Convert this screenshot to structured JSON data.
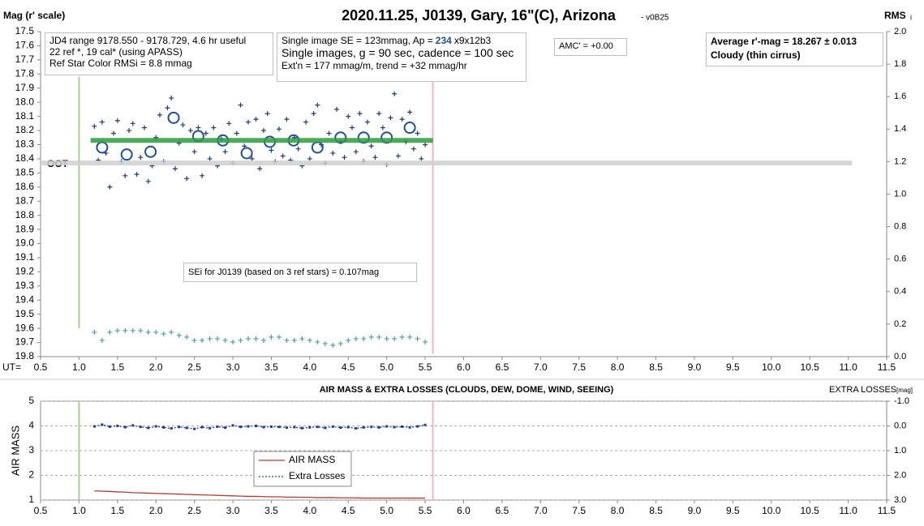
{
  "chart_data": [
    {
      "type": "scatter",
      "title": "2020.11.25, J0139, Gary, 16\"(C), Arizona",
      "subtitle": "- v0B25",
      "ylabel": "Mag (r' scale)",
      "y2label": "RMS",
      "y2label_sub": "i",
      "xlabel": "UT=",
      "xlim": [
        0.5,
        11.5
      ],
      "xticks": [
        0.5,
        {
          "value": 1,
          "label": "1.0"
        },
        1.5,
        {
          "value": 2,
          "label": "2.0"
        },
        2.5,
        {
          "value": 3,
          "label": "3.0"
        },
        3.5,
        {
          "value": 4,
          "label": "4.0"
        },
        4.5,
        {
          "value": 5,
          "label": "5.0"
        },
        5.5,
        {
          "value": 6,
          "label": "6.0"
        },
        6.5,
        {
          "value": 7,
          "label": "7.0"
        },
        7.5,
        {
          "value": 8,
          "label": "8.0"
        },
        8.5,
        {
          "value": 9,
          "label": "9.0"
        },
        9.5,
        {
          "value": 10,
          "label": "10.0"
        },
        10.5,
        {
          "value": 11,
          "label": "11.0"
        },
        11.5
      ],
      "ylim": [
        19.8,
        17.5
      ],
      "yticks": [
        17.5,
        17.6,
        17.7,
        17.8,
        17.9,
        {
          "value": 18,
          "label": "18.0"
        },
        18.1,
        18.2,
        18.3,
        18.4,
        18.5,
        18.6,
        18.7,
        18.8,
        18.9,
        {
          "value": 19,
          "label": "19.0"
        },
        19.1,
        19.2,
        19.3,
        19.4,
        19.5,
        19.6,
        19.7,
        19.8
      ],
      "y2lim": [
        0,
        2
      ],
      "y2ticks": [
        {
          "value": 0,
          "label": "0.0"
        },
        0.2,
        0.4,
        0.6,
        0.8,
        {
          "value": 1,
          "label": "1.0"
        },
        1.2,
        1.4,
        1.6,
        1.8,
        {
          "value": 2,
          "label": "2.0"
        }
      ],
      "grid": false,
      "vlines": [
        {
          "x": 1.0,
          "y": [
            17.82,
            19.6
          ],
          "color": "#a9d18e"
        },
        {
          "x": 5.6,
          "y": [
            17.82,
            19.78
          ],
          "color": "#f4b6b6"
        }
      ],
      "series": [
        {
          "style": "plus",
          "color": "#1f3a7a",
          "x": [
            1.2,
            1.25,
            1.3,
            1.35,
            1.4,
            1.45,
            1.5,
            1.55,
            1.6,
            1.65,
            1.7,
            1.75,
            1.8,
            1.85,
            1.9,
            1.95,
            2.0,
            2.05,
            2.1,
            2.15,
            2.2,
            2.25,
            2.3,
            2.35,
            2.4,
            2.45,
            2.5,
            2.55,
            2.6,
            2.65,
            2.7,
            2.75,
            2.8,
            2.85,
            2.9,
            2.95,
            3.0,
            3.05,
            3.1,
            3.15,
            3.2,
            3.25,
            3.3,
            3.35,
            3.4,
            3.45,
            3.5,
            3.55,
            3.6,
            3.65,
            3.7,
            3.75,
            3.8,
            3.85,
            3.9,
            3.95,
            4.0,
            4.05,
            4.1,
            4.15,
            4.2,
            4.25,
            4.3,
            4.35,
            4.4,
            4.45,
            4.5,
            4.55,
            4.6,
            4.65,
            4.7,
            4.75,
            4.8,
            4.85,
            4.9,
            4.95,
            5.0,
            5.05,
            5.1,
            5.15,
            5.2,
            5.25,
            5.3,
            5.35,
            5.4,
            5.45,
            5.5
          ],
          "values": [
            18.17,
            18.41,
            18.14,
            18.36,
            18.6,
            18.22,
            18.13,
            18.42,
            18.52,
            18.2,
            18.15,
            18.51,
            18.39,
            18.18,
            18.56,
            18.45,
            18.25,
            18.09,
            18.42,
            18.04,
            17.97,
            18.47,
            18.29,
            18.16,
            18.54,
            18.2,
            18.35,
            18.18,
            18.52,
            18.22,
            18.4,
            18.18,
            18.45,
            18.26,
            18.35,
            18.15,
            18.43,
            18.22,
            18.02,
            18.31,
            18.14,
            18.4,
            18.12,
            18.47,
            18.2,
            18.08,
            18.34,
            18.42,
            18.19,
            18.38,
            18.12,
            18.41,
            18.25,
            18.33,
            18.45,
            18.14,
            18.4,
            18.08,
            18.02,
            18.3,
            18.43,
            18.22,
            18.36,
            18.05,
            18.28,
            18.39,
            18.1,
            18.18,
            18.35,
            18.08,
            18.42,
            18.14,
            18.31,
            18.39,
            18.08,
            18.18,
            18.44,
            18.11,
            17.94,
            18.38,
            18.12,
            18.28,
            18.07,
            18.33,
            18.22,
            18.4,
            18.3
          ]
        },
        {
          "style": "circle",
          "color": "#1f4e9e",
          "x": [
            1.3,
            1.62,
            1.93,
            2.23,
            2.55,
            2.87,
            3.18,
            3.48,
            3.79,
            4.1,
            4.4,
            4.7,
            5.0,
            5.3
          ],
          "values": [
            18.32,
            18.37,
            18.35,
            18.11,
            18.24,
            18.27,
            18.36,
            18.28,
            18.27,
            18.32,
            18.25,
            18.25,
            18.25,
            18.18
          ]
        },
        {
          "style": "line",
          "color": "#2e9a3e",
          "x": [
            1.15,
            5.6
          ],
          "values": [
            18.27,
            18.27
          ]
        },
        {
          "style": "line",
          "color": "#cfcfcf",
          "x": [
            0.5,
            11.05
          ],
          "values": [
            18.43,
            18.43
          ]
        },
        {
          "style": "plus",
          "color": "#4aa3a3",
          "axis": "y2",
          "x": [
            1.2,
            1.3,
            1.4,
            1.5,
            1.6,
            1.7,
            1.8,
            1.9,
            2.0,
            2.1,
            2.2,
            2.3,
            2.4,
            2.5,
            2.6,
            2.7,
            2.8,
            2.9,
            3.0,
            3.1,
            3.2,
            3.3,
            3.4,
            3.5,
            3.6,
            3.7,
            3.8,
            3.9,
            4.0,
            4.1,
            4.2,
            4.3,
            4.4,
            4.5,
            4.6,
            4.7,
            4.8,
            4.9,
            5.0,
            5.1,
            5.2,
            5.3,
            5.4,
            5.5
          ],
          "values": [
            0.15,
            0.1,
            0.15,
            0.16,
            0.16,
            0.16,
            0.16,
            0.15,
            0.15,
            0.14,
            0.15,
            0.13,
            0.12,
            0.1,
            0.1,
            0.11,
            0.11,
            0.1,
            0.09,
            0.1,
            0.11,
            0.11,
            0.1,
            0.12,
            0.12,
            0.1,
            0.1,
            0.11,
            0.1,
            0.09,
            0.08,
            0.07,
            0.08,
            0.1,
            0.11,
            0.11,
            0.12,
            0.12,
            0.11,
            0.11,
            0.12,
            0.12,
            0.11,
            0.09
          ]
        }
      ],
      "annotations": [
        "JD4 range 9178.550 - 9178.729, 4.6 hr useful",
        "22 ref *, 19 cal* (using APASS)",
        "Ref Star Color RMSi = 8.8 mmag",
        "Single image SE = 123mmag, Ap =",
        "234",
        "x9x12b3",
        "Single images, g = 90 sec, cadence = 100 sec",
        "Ext'n = 177 mmag/m, trend = +32 mmag/hr",
        "AMC' = +0.00",
        "Average r'-mag =  18.267 ± 0.013",
        "Cloudy (thin cirrus)",
        "SEi for J0139 (based on 3 ref stars) = 0.107mag",
        "OOT"
      ]
    },
    {
      "type": "line",
      "title": "AIR MASS & EXTRA LOSSES (CLOUDS, DEW, DOME, WIND, SEEING)",
      "ylabel": "AIR MASS",
      "y2label": "EXTRA LOSSES",
      "y2label_sub": "[mag]",
      "xlim": [
        0.5,
        11.5
      ],
      "xticks": [
        0.5,
        {
          "value": 1,
          "label": "1.0"
        },
        1.5,
        {
          "value": 2,
          "label": "2.0"
        },
        2.5,
        {
          "value": 3,
          "label": "3.0"
        },
        3.5,
        {
          "value": 4,
          "label": "4.0"
        },
        4.5,
        {
          "value": 5,
          "label": "5.0"
        },
        5.5,
        {
          "value": 6,
          "label": "6.0"
        },
        6.5,
        {
          "value": 7,
          "label": "7.0"
        },
        7.5,
        {
          "value": 8,
          "label": "8.0"
        },
        8.5,
        {
          "value": 9,
          "label": "9.0"
        },
        9.5,
        {
          "value": 10,
          "label": "10.0"
        },
        10.5,
        {
          "value": 11,
          "label": "11.0"
        },
        11.5
      ],
      "ylim": [
        1,
        5
      ],
      "yticks": [
        1,
        2,
        3,
        4,
        5
      ],
      "y2lim": [
        3,
        -1
      ],
      "y2ticks": [
        {
          "value": -1,
          "label": "-1.0"
        },
        {
          "value": 0,
          "label": "0.0"
        },
        {
          "value": 1,
          "label": "1.0"
        },
        {
          "value": 2,
          "label": "2.0"
        },
        {
          "value": 3,
          "label": "3.0"
        }
      ],
      "grid": true,
      "vlines": [
        {
          "x": 1.0,
          "y": [
            1,
            5
          ],
          "color": "#a9d18e"
        },
        {
          "x": 5.6,
          "y": [
            1,
            5
          ],
          "color": "#f4b6b6"
        }
      ],
      "series": [
        {
          "name": "AIR MASS",
          "style": "line",
          "color": "#c0392b",
          "x": [
            1.2,
            1.3,
            1.4,
            1.5,
            1.6,
            1.7,
            1.8,
            1.9,
            2.0,
            2.1,
            2.2,
            2.3,
            2.4,
            2.5,
            2.6,
            2.7,
            2.8,
            2.9,
            3.0,
            3.1,
            3.2,
            3.3,
            3.4,
            3.5,
            3.6,
            3.7,
            3.8,
            3.9,
            4.0,
            4.1,
            4.2,
            4.3,
            4.4,
            4.5,
            4.6,
            4.7,
            4.8,
            4.9,
            5.0,
            5.1,
            5.2,
            5.3,
            5.4,
            5.5
          ],
          "values": [
            1.37,
            1.36,
            1.35,
            1.33,
            1.32,
            1.3,
            1.29,
            1.28,
            1.27,
            1.26,
            1.25,
            1.24,
            1.23,
            1.22,
            1.21,
            1.2,
            1.19,
            1.18,
            1.17,
            1.16,
            1.15,
            1.15,
            1.14,
            1.13,
            1.13,
            1.12,
            1.12,
            1.11,
            1.11,
            1.1,
            1.1,
            1.1,
            1.09,
            1.09,
            1.09,
            1.08,
            1.08,
            1.08,
            1.08,
            1.08,
            1.08,
            1.08,
            1.08,
            1.08
          ]
        },
        {
          "name": "Extra Losses",
          "style": "dotted-line",
          "color": "#1f3aa0",
          "axis": "y2",
          "x": [
            1.2,
            1.3,
            1.4,
            1.5,
            1.6,
            1.7,
            1.8,
            1.9,
            2.0,
            2.1,
            2.2,
            2.3,
            2.4,
            2.5,
            2.6,
            2.7,
            2.8,
            2.9,
            3.0,
            3.1,
            3.2,
            3.3,
            3.4,
            3.5,
            3.6,
            3.7,
            3.8,
            3.9,
            4.0,
            4.1,
            4.2,
            4.3,
            4.4,
            4.5,
            4.6,
            4.7,
            4.8,
            4.9,
            5.0,
            5.1,
            5.2,
            5.3,
            5.4,
            5.5
          ],
          "values": [
            0.02,
            -0.05,
            0.03,
            0.0,
            0.05,
            -0.02,
            0.04,
            0.08,
            0.02,
            0.06,
            0.1,
            0.04,
            0.08,
            0.12,
            0.05,
            0.09,
            0.03,
            0.07,
            -0.02,
            0.04,
            0.02,
            0.0,
            0.05,
            0.03,
            0.04,
            0.07,
            0.05,
            0.09,
            0.06,
            0.04,
            0.08,
            0.03,
            0.07,
            0.05,
            0.1,
            0.06,
            0.04,
            0.06,
            0.02,
            0.05,
            0.03,
            0.06,
            0.02,
            -0.04
          ]
        }
      ]
    }
  ]
}
